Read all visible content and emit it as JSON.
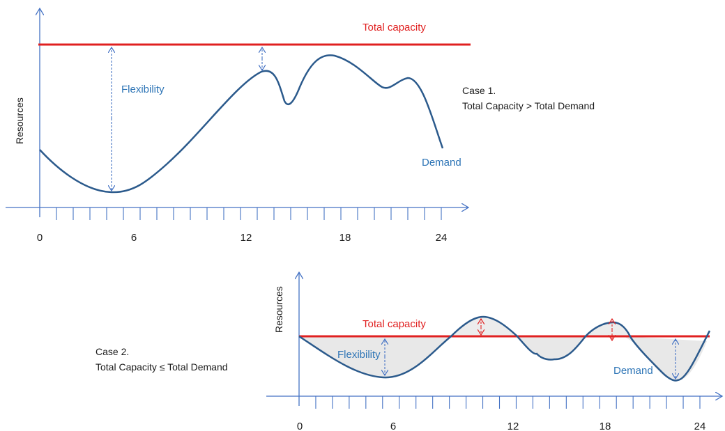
{
  "colors": {
    "axis": "#4472c4",
    "capacity": "#e02020",
    "demand": "#2b5a8c",
    "label_blue": "#2e75b6",
    "fill_gray": "#e8e8e8",
    "text_dark": "#1a1a1a"
  },
  "case1": {
    "capacity_label": "Total capacity",
    "flexibility_label": "Flexibility",
    "demand_label": "Demand",
    "y_axis_label": "Resources",
    "case_title": "Case 1.",
    "case_condition": "Total Capacity > Total Demand",
    "x_ticks": [
      "0",
      "6",
      "12",
      "18",
      "24"
    ]
  },
  "case2": {
    "capacity_label": "Total capacity",
    "flexibility_label": "Flexibility",
    "demand_label": "Demand",
    "y_axis_label": "Resources",
    "case_title": "Case 2.",
    "case_condition": "Total Capacity ≤ Total Demand",
    "x_ticks": [
      "0",
      "6",
      "12",
      "18",
      "24"
    ]
  }
}
